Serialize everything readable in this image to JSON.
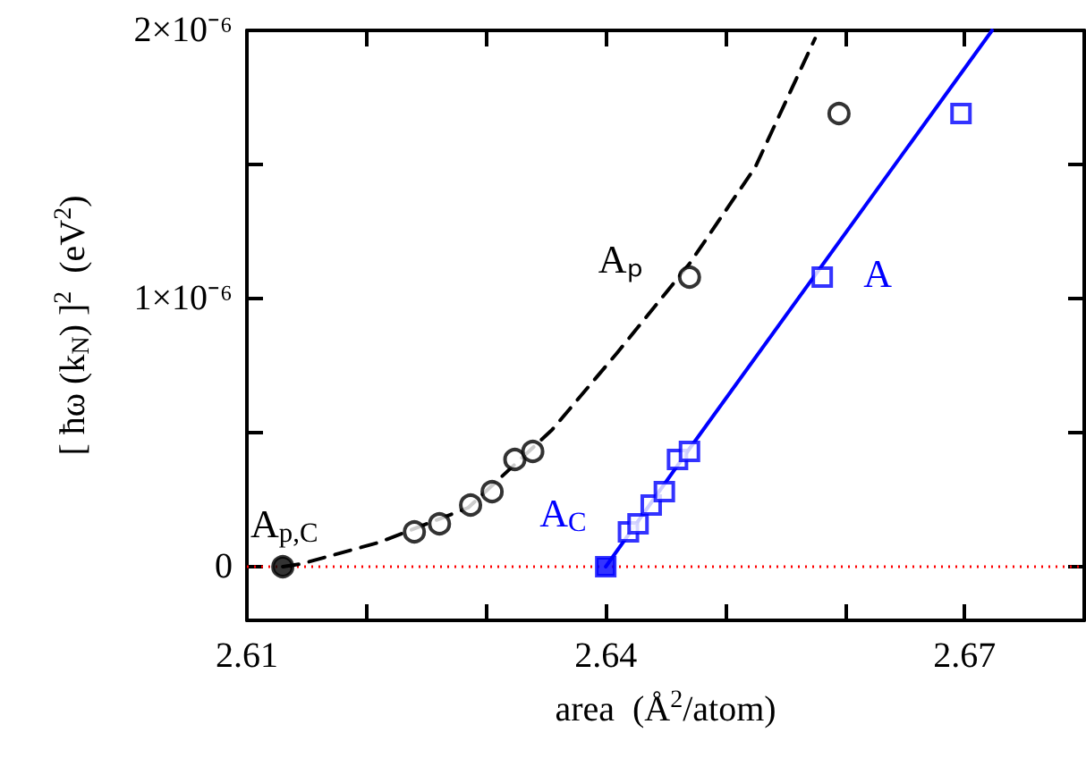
{
  "chart_data": {
    "type": "scatter",
    "xlabel": "area  (Å$^{2}$/atom)",
    "ylabel": "[ ħω (k$_{N}$) ]$^{2}$  (eV$^{2}$)",
    "xlim": [
      2.61,
      2.68
    ],
    "xticks": [
      2.61,
      {
        "value": 2.62,
        "label": null
      },
      {
        "value": 2.63,
        "label": null
      },
      2.64,
      {
        "value": 2.65,
        "label": null
      },
      {
        "value": 2.66,
        "label": null
      },
      2.67
    ],
    "ylim": [
      -2e-07,
      2e-06
    ],
    "yticks": [
      0,
      {
        "value": 5e-07,
        "label": null
      },
      {
        "value": 1e-06,
        "label": "1×10⁻⁶"
      },
      {
        "value": 1.5e-06,
        "label": null
      },
      {
        "value": 2e-06,
        "label": "2×10⁻⁶"
      }
    ],
    "grid": false,
    "series": [
      {
        "type": "line",
        "color": "#000000",
        "marker": "none",
        "line_style": "dashed",
        "x": [
          2.613,
          2.6145,
          2.621,
          2.6285,
          2.6355,
          2.641,
          2.647,
          2.6525,
          2.6575
        ],
        "values": [
          0,
          1e-08,
          9e-08,
          2.2e-07,
          5.1e-07,
          8e-07,
          1.13e-06,
          1.49e-06,
          1.97e-06
        ]
      },
      {
        "type": "line",
        "color": "#0000ff",
        "marker": "none",
        "line_style": "solid",
        "x": [
          2.64,
          2.647,
          2.6723
        ],
        "values": [
          0,
          4.4e-07,
          2e-06
        ]
      },
      {
        "color": "#000000",
        "marker": "circle",
        "x": [
          2.624,
          2.6261,
          2.6287,
          2.6305,
          2.6324,
          2.6339,
          2.647,
          2.6595
        ],
        "values": [
          1.3e-07,
          1.6e-07,
          2.3e-07,
          2.8e-07,
          4e-07,
          4.3e-07,
          1.08e-06,
          1.69e-06
        ]
      },
      {
        "color": "#0000ff",
        "marker": "square",
        "x": [
          2.6419,
          2.6427,
          2.6438,
          2.6449,
          2.646,
          2.647,
          2.6581,
          2.6697
        ],
        "values": [
          1.3e-07,
          1.6e-07,
          2.3e-07,
          2.8e-07,
          4e-07,
          4.3e-07,
          1.08e-06,
          1.69e-06
        ]
      },
      {
        "color": "#000000",
        "marker": "circle",
        "x": [
          2.613
        ],
        "values": [
          0
        ]
      },
      {
        "color": "#0000ff",
        "marker": "square",
        "x": [
          2.64
        ],
        "values": [
          0
        ]
      }
    ],
    "ref_lines": [
      {
        "axis": "y",
        "value": 0,
        "color": "#ff0000",
        "line_style": "dotted"
      }
    ],
    "annotations": [
      {
        "text": "A$_{p,C}$",
        "x": 2.613,
        "y": 0
      },
      {
        "text": "Aₚ",
        "x": 2.647,
        "y": 1.08e-06
      },
      {
        "text": "A$_{C}$",
        "x": 2.64,
        "y": 0
      },
      {
        "text": "A",
        "x": 2.6581,
        "y": 1.08e-06
      }
    ]
  }
}
